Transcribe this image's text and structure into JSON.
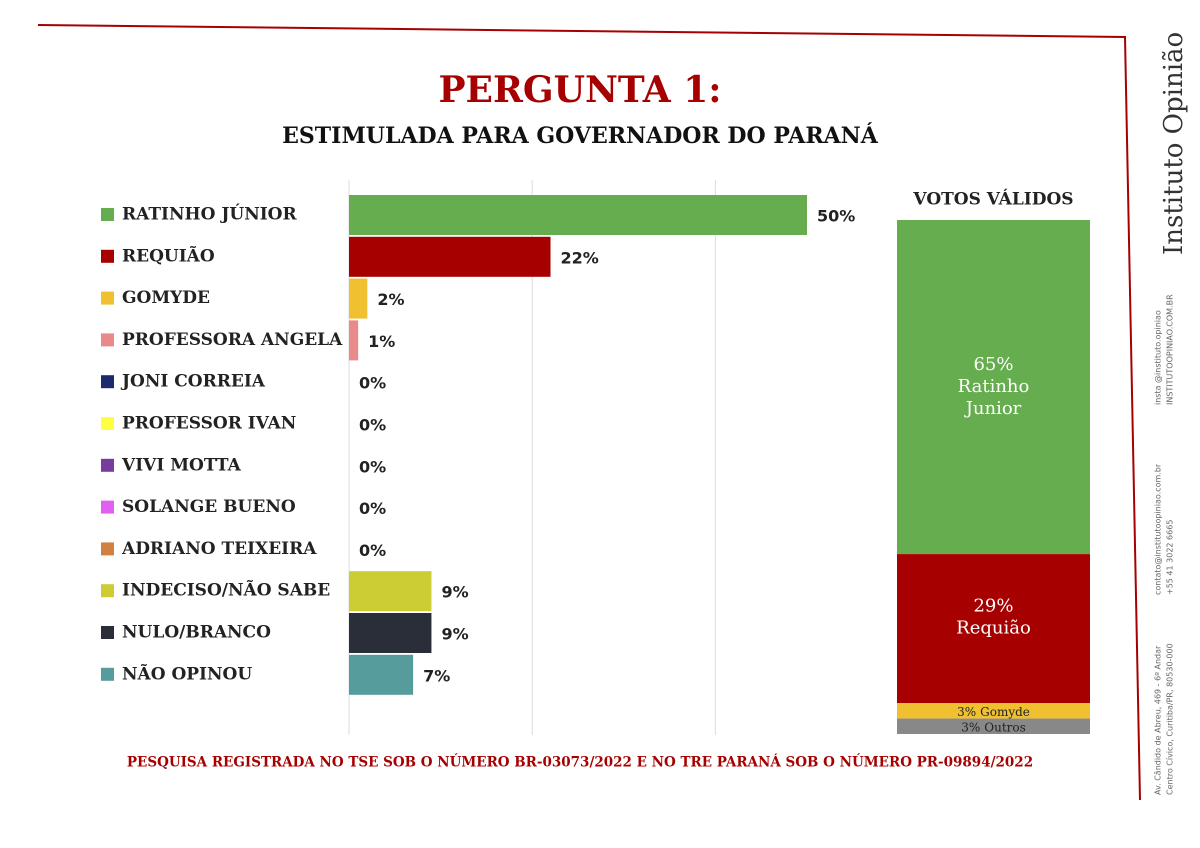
{
  "title": "PERGUNTA 1:",
  "subtitle": "ESTIMULADA PARA GOVERNADOR DO PARANÁ",
  "footer": "PESQUISA REGISTRADA NO TSE SOB O NÚMERO BR-03073/2022 E NO TRE PARANÁ SOB O NÚMERO PR-09894/2022",
  "brand": "Instituto Opinião",
  "contacts": [
    "insta @instituto.opiniao",
    "INSTITUTOOPINIAO.COM.BR",
    "contato@institutoopiniao.com.br",
    "+55 41 3022 6665",
    "Av. Cândido de Abreu, 469 - 6º Andar",
    "Centro Cívico, Curitiba/PR, 80530-000"
  ],
  "chart_data": [
    {
      "type": "hbar",
      "categories": [
        "RATINHO JÚNIOR",
        "REQUIÃO",
        "GOMYDE",
        "PROFESSORA ANGELA",
        "JONI CORREIA",
        "PROFESSOR IVAN",
        "VIVI MOTTA",
        "SOLANGE BUENO",
        "ADRIANO TEIXEIRA",
        "INDECISO/NÃO SABE",
        "NULO/BRANCO",
        "NÃO OPINOU"
      ],
      "values": [
        50,
        22,
        2,
        1,
        0,
        0,
        0,
        0,
        0,
        9,
        9,
        7
      ],
      "value_labels": [
        "50%",
        "22%",
        "2%",
        "1%",
        "0%",
        "0%",
        "0%",
        "0%",
        "0%",
        "9%",
        "9%",
        "7%"
      ],
      "colors": [
        "#66ad50",
        "#a60000",
        "#f0c030",
        "#e88a8a",
        "#1a2a6c",
        "#ffff40",
        "#7a3c9c",
        "#e060f0",
        "#d08040",
        "#cccc33",
        "#2a2e38",
        "#579c9c"
      ],
      "xlim": [
        0,
        50
      ],
      "xticks": [
        0,
        20,
        40
      ],
      "grid": true,
      "tick_labels": false
    },
    {
      "type": "stacked_column",
      "title": "VOTOS VÁLIDOS",
      "ylim": [
        0,
        100
      ],
      "series": [
        {
          "name": "Ratinho Junior",
          "color": "#66ad50",
          "values": [
            65
          ],
          "value_labels": [
            "65%"
          ]
        },
        {
          "name": "Requião",
          "color": "#a60000",
          "values": [
            29
          ],
          "value_labels": [
            "29%"
          ]
        },
        {
          "name": "Gomyde",
          "color": "#f0c030",
          "values": [
            3
          ],
          "value_labels": [
            "3%"
          ]
        },
        {
          "name": "Outros",
          "color": "#888888",
          "values": [
            3
          ],
          "value_labels": [
            "3%"
          ]
        }
      ]
    }
  ]
}
